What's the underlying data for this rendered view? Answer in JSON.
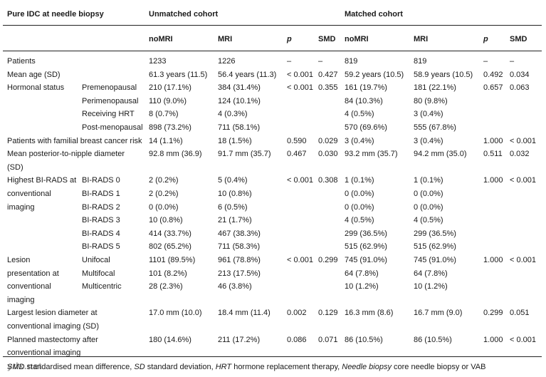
{
  "header": {
    "first_col": "Pure IDC at needle biopsy",
    "group_unmatched": "Unmatched cohort",
    "group_matched": "Matched cohort",
    "sub": [
      "noMRI",
      "MRI",
      "p",
      "SMD",
      "noMRI",
      "MRI",
      "p",
      "SMD"
    ]
  },
  "rows": [
    {
      "c0": "Patients",
      "c1": "",
      "v": [
        "1233",
        "1226",
        "–",
        "–",
        "819",
        "819",
        "–",
        "–"
      ]
    },
    {
      "c0": "Mean age (SD)",
      "c1": "",
      "v": [
        "61.3 years (11.5)",
        "56.4 years (11.3)",
        "< 0.001",
        "0.427",
        "59.2 years (10.5)",
        "58.9 years (10.5)",
        "0.492",
        "0.034"
      ]
    },
    {
      "c0": "Hormonal status",
      "c1": "Premenopausal",
      "v": [
        "210 (17.1%)",
        "384 (31.4%)",
        "< 0.001",
        "0.355",
        "161 (19.7%)",
        "181 (22.1%)",
        "0.657",
        "0.063"
      ]
    },
    {
      "c0": "",
      "c1": "Perimenopausal",
      "v": [
        "110 (9.0%)",
        "124 (10.1%)",
        "",
        "",
        "84 (10.3%)",
        "80 (9.8%)",
        "",
        ""
      ]
    },
    {
      "c0": "",
      "c1": "Receiving HRT",
      "v": [
        "8 (0.7%)",
        "4 (0.3%)",
        "",
        "",
        "4 (0.5%)",
        "3 (0.4%)",
        "",
        ""
      ]
    },
    {
      "c0": "",
      "c1": "Post-menopausal",
      "v": [
        "898 (73.2%)",
        "711 (58.1%)",
        "",
        "",
        "570 (69.6%)",
        "555 (67.8%)",
        "",
        ""
      ]
    },
    {
      "c0": "Patients with familial breast cancer risk",
      "c1": "",
      "v": [
        "14 (1.1%)",
        "18 (1.5%)",
        "0.590",
        "0.029",
        "3 (0.4%)",
        "3 (0.4%)",
        "1.000",
        "< 0.001"
      ]
    },
    {
      "c0": "Mean posterior-to-nipple diameter",
      "c1": "",
      "v": [
        "92.8 mm (36.9)",
        "91.7 mm (35.7)",
        "0.467",
        "0.030",
        "93.2 mm (35.7)",
        "94.2 mm (35.0)",
        "0.511",
        "0.032"
      ]
    },
    {
      "c0": "(SD)",
      "c1": "",
      "v": [
        "",
        "",
        "",
        "",
        "",
        "",
        "",
        ""
      ]
    },
    {
      "c0": "Highest BI-RADS at",
      "c1": "BI-RADS 0",
      "v": [
        "2 (0.2%)",
        "5 (0.4%)",
        "< 0.001",
        "0.308",
        "1 (0.1%)",
        "1 (0.1%)",
        "1.000",
        "< 0.001"
      ]
    },
    {
      "c0": "conventional",
      "c1": "BI-RADS 1",
      "v": [
        "2 (0.2%)",
        "10 (0.8%)",
        "",
        "",
        "0 (0.0%)",
        "0 (0.0%)",
        "",
        ""
      ]
    },
    {
      "c0": "imaging",
      "c1": "BI-RADS 2",
      "v": [
        "0 (0.0%)",
        "6 (0.5%)",
        "",
        "",
        "0 (0.0%)",
        "0 (0.0%)",
        "",
        ""
      ]
    },
    {
      "c0": "",
      "c1": "BI-RADS 3",
      "v": [
        "10 (0.8%)",
        "21 (1.7%)",
        "",
        "",
        "4 (0.5%)",
        "4 (0.5%)",
        "",
        ""
      ]
    },
    {
      "c0": "",
      "c1": "BI-RADS 4",
      "v": [
        "414 (33.7%)",
        "467 (38.3%)",
        "",
        "",
        "299 (36.5%)",
        "299 (36.5%)",
        "",
        ""
      ]
    },
    {
      "c0": "",
      "c1": "BI-RADS 5",
      "v": [
        "802 (65.2%)",
        "711 (58.3%)",
        "",
        "",
        "515 (62.9%)",
        "515 (62.9%)",
        "",
        ""
      ]
    },
    {
      "c0": "Lesion",
      "c1": "Unifocal",
      "v": [
        "1101 (89.5%)",
        "961 (78.8%)",
        "< 0.001",
        "0.299",
        "745 (91.0%)",
        "745 (91.0%)",
        "1.000",
        "< 0.001"
      ]
    },
    {
      "c0": "presentation at",
      "c1": "Multifocal",
      "v": [
        "101 (8.2%)",
        "213 (17.5%)",
        "",
        "",
        "64 (7.8%)",
        "64 (7.8%)",
        "",
        ""
      ]
    },
    {
      "c0": "conventional",
      "c1": "Multicentric",
      "v": [
        "28 (2.3%)",
        "46 (3.8%)",
        "",
        "",
        "10 (1.2%)",
        "10 (1.2%)",
        "",
        ""
      ]
    },
    {
      "c0": "imaging",
      "c1": "",
      "v": [
        "",
        "",
        "",
        "",
        "",
        "",
        "",
        ""
      ]
    },
    {
      "c0": "Largest lesion diameter at",
      "c1": "",
      "v": [
        "17.0 mm (10.0)",
        "18.4 mm (11.4)",
        "0.002",
        "0.129",
        "16.3 mm (8.6)",
        "16.7 mm (9.0)",
        "0.299",
        "0.051"
      ]
    },
    {
      "c0": "conventional imaging (SD)",
      "c1": "",
      "v": [
        "",
        "",
        "",
        "",
        "",
        "",
        "",
        ""
      ]
    },
    {
      "c0": "Planned mastectomy after",
      "c1": "",
      "v": [
        "180 (14.6%)",
        "211 (17.2%)",
        "0.086",
        "0.071",
        "86 (10.5%)",
        "86 (10.5%)",
        "1.000",
        "< 0.001"
      ]
    },
    {
      "c0": "conventional imaging",
      "c1": "",
      "v": [
        "",
        "",
        "",
        "",
        "",
        "",
        "",
        ""
      ]
    }
  ],
  "footnote": {
    "items": [
      {
        "abbr": "SMD",
        "text": " standardised mean difference, "
      },
      {
        "abbr": "SD",
        "text": " standard deviation, "
      },
      {
        "abbr": "HRT",
        "text": " hormone replacement therapy, "
      },
      {
        "abbr": "Needle biopsy",
        "text": " core needle biopsy or VAB"
      }
    ]
  },
  "watermark": "ydx.net"
}
